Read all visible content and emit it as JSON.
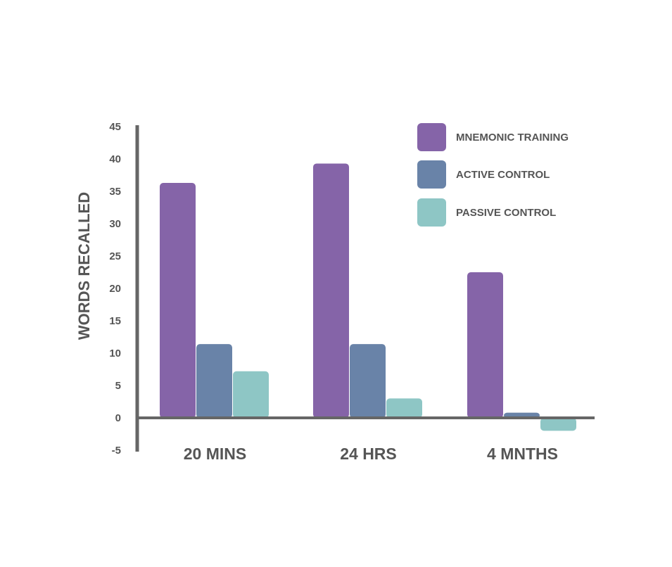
{
  "chart_data": {
    "type": "bar",
    "title": "",
    "xlabel": "",
    "ylabel": "WORDS RECALLED",
    "categories": [
      "20 MINS",
      "24 HRS",
      "4 MNTHS"
    ],
    "series": [
      {
        "name": "MNEMONIC TRAINING",
        "color": "#8564a8",
        "values": [
          36.3,
          39.3,
          22.5
        ]
      },
      {
        "name": "ACTIVE CONTROL",
        "color": "#6983a8",
        "values": [
          11.4,
          11.4,
          0.8
        ]
      },
      {
        "name": "PASSIVE CONTROL",
        "color": "#8ec6c5",
        "values": [
          7.2,
          3.0,
          -2.0
        ]
      }
    ],
    "ylim": [
      -5,
      45
    ],
    "yticks": [
      45,
      40,
      35,
      30,
      25,
      20,
      15,
      10,
      5,
      0,
      -5
    ],
    "grid": false,
    "legend_position": "top-right",
    "axis_color": "#666666"
  }
}
